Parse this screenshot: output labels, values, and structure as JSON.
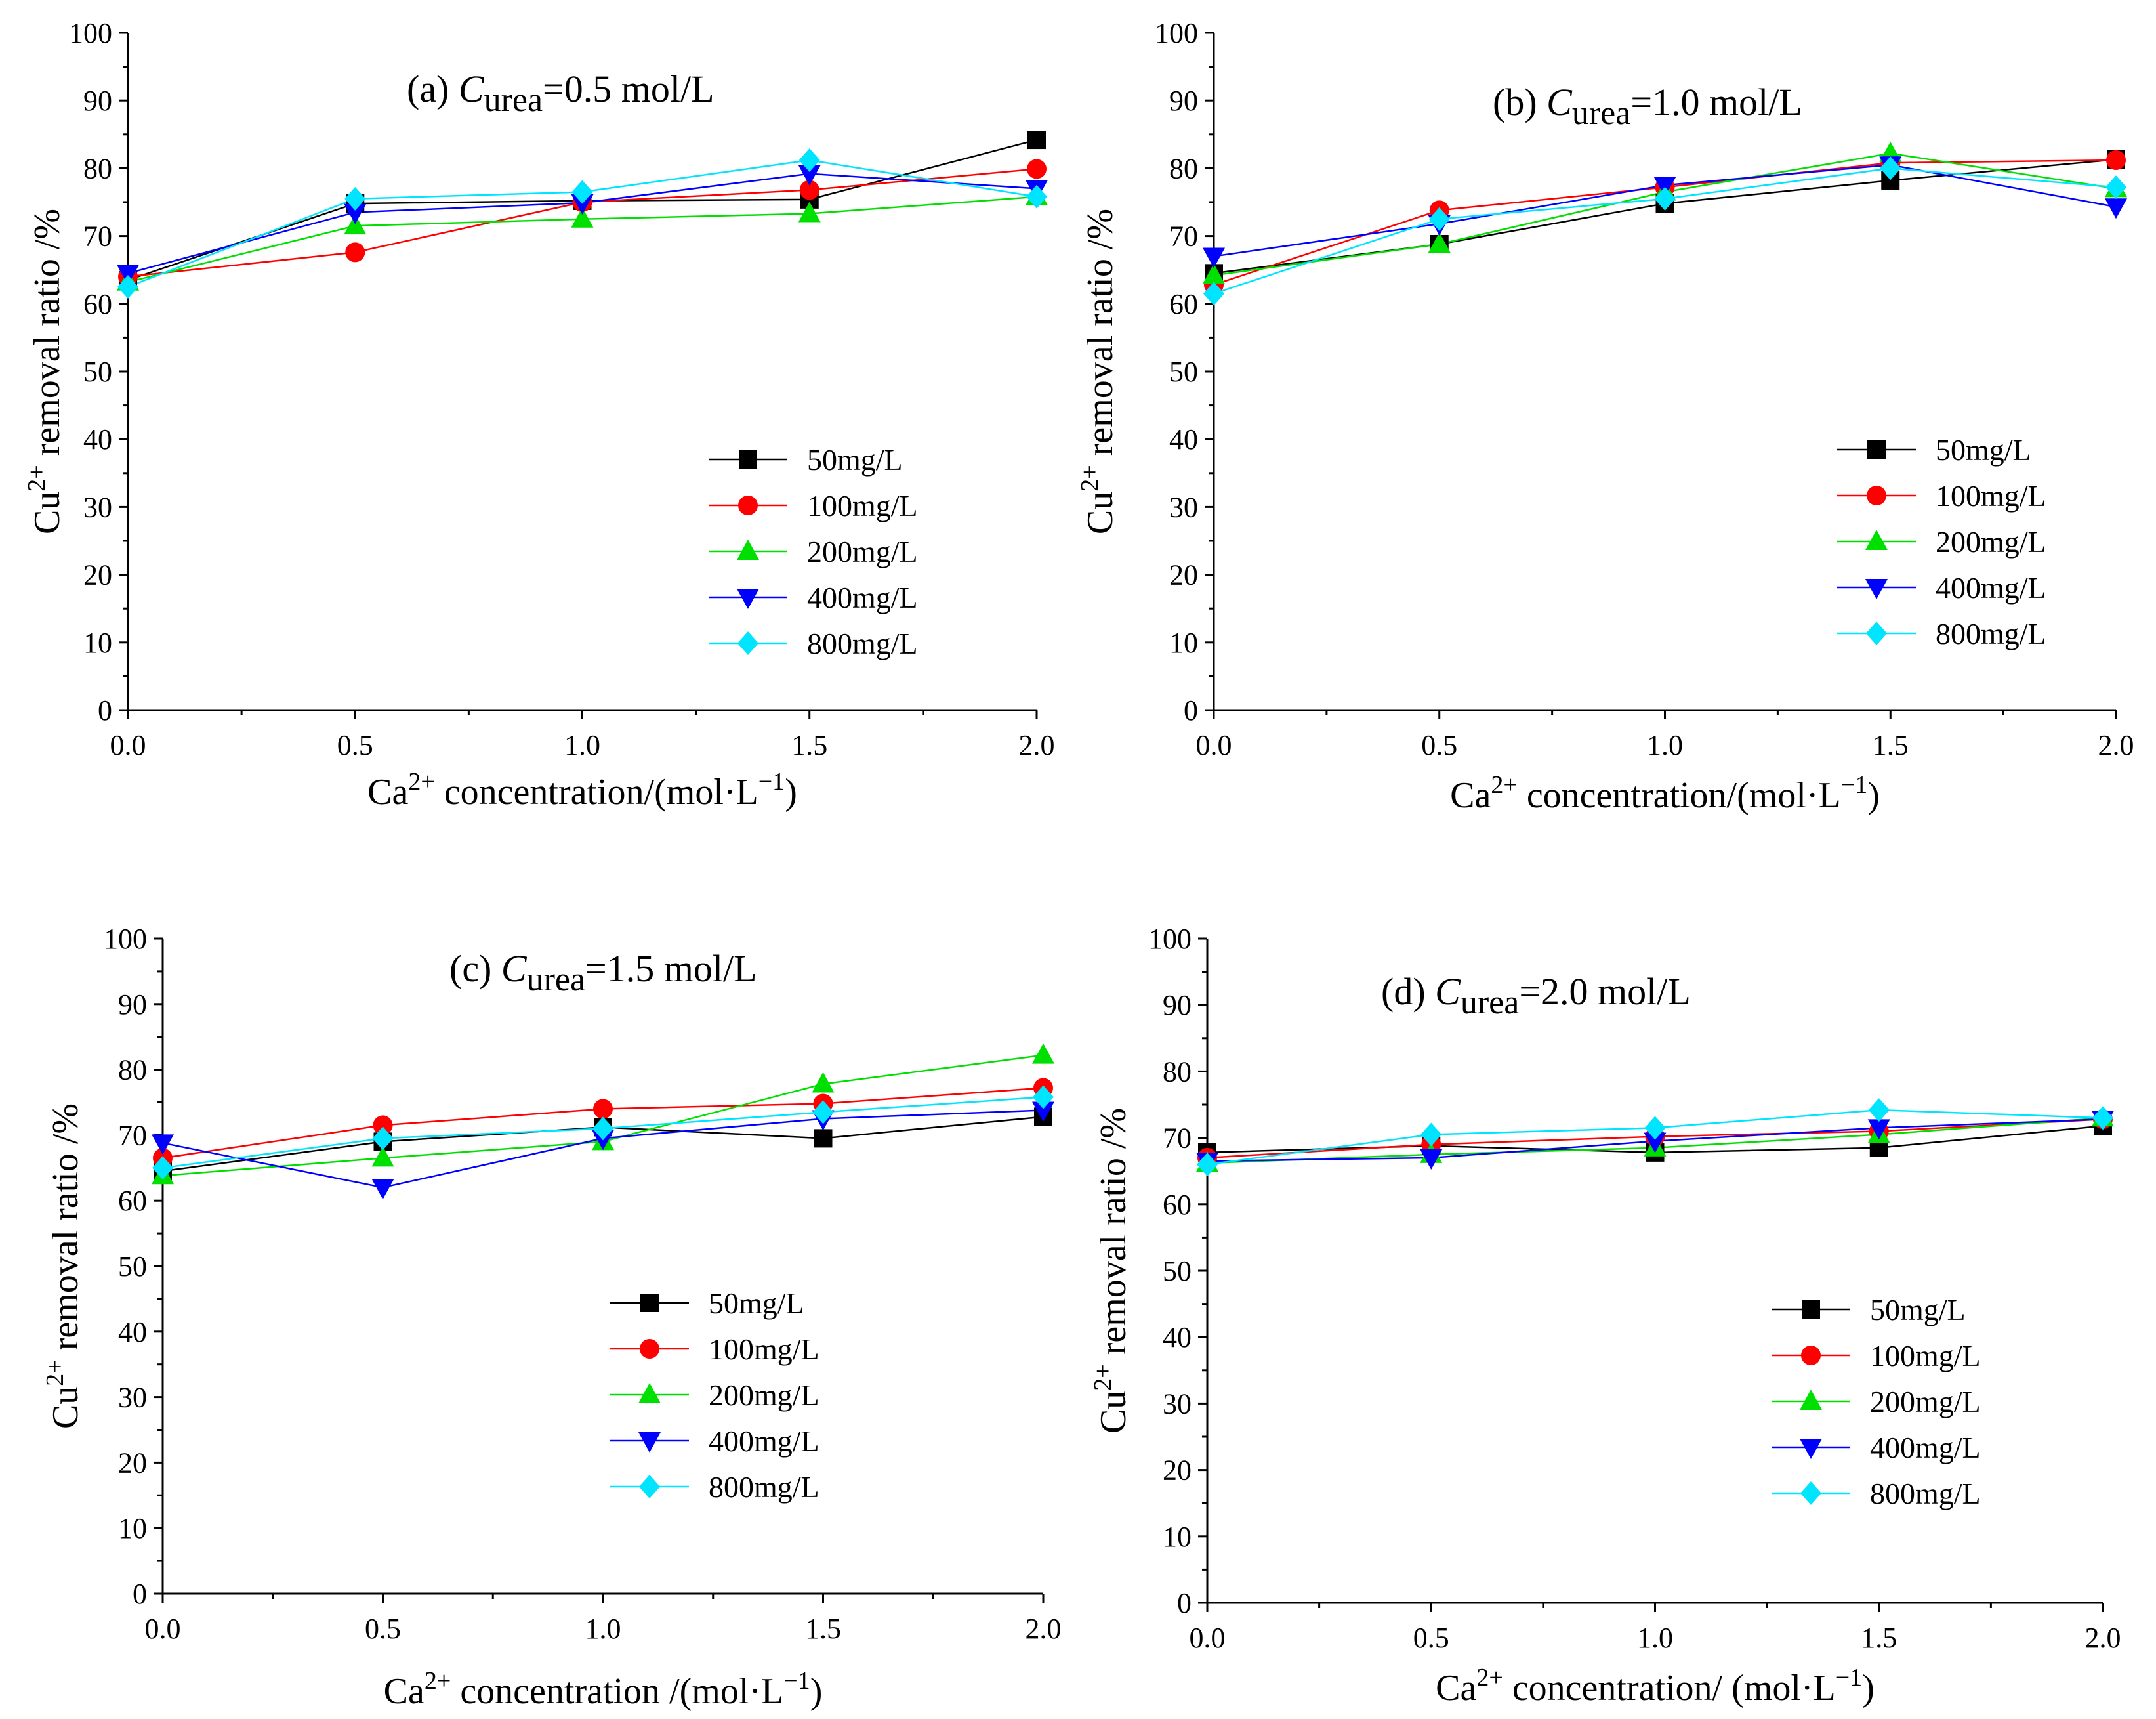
{
  "figure": {
    "description_labels": [
      "(a)",
      "(b)",
      "(c)",
      "(d)"
    ]
  },
  "colors": {
    "50mg/L": "#000000",
    "100mg/L": "#ff0000",
    "200mg/L": "#00e000",
    "400mg/L": "#0000ff",
    "800mg/L": "#00e5ff"
  },
  "chart_data": [
    {
      "type": "line",
      "panel": "a",
      "title_prefix": "(a) ",
      "title_italic": "C",
      "title_sub": "urea",
      "title_suffix": "=0.5 mol/L",
      "ylabel_base": "Cu",
      "ylabel_sup": "2+",
      "ylabel_rest": " removal ratio /%",
      "xlabel_base": "Ca",
      "xlabel_sup": "2+",
      "xlabel_rest": " concentration/(mol·L",
      "xlabel_sup2": "−1",
      "xlabel_end": ")",
      "xlim": [
        0,
        2
      ],
      "ylim": [
        0,
        100
      ],
      "xticks": [
        "0.0",
        "0.5",
        "1.0",
        "1.5",
        "2.0"
      ],
      "yticks": [
        "0",
        "10",
        "20",
        "30",
        "40",
        "50",
        "60",
        "70",
        "80",
        "90",
        "100"
      ],
      "x": [
        0,
        0.5,
        1.0,
        1.5,
        2.0
      ],
      "legend_position": "lower-right",
      "series": [
        {
          "name": "50mg/L",
          "marker": "square",
          "values": [
            63.5,
            74.8,
            75.2,
            75.4,
            84.2
          ]
        },
        {
          "name": "100mg/L",
          "marker": "circle",
          "values": [
            64.0,
            67.6,
            75.0,
            76.8,
            79.9
          ]
        },
        {
          "name": "200mg/L",
          "marker": "triangle-up",
          "values": [
            63.2,
            71.5,
            72.5,
            73.3,
            75.8
          ]
        },
        {
          "name": "400mg/L",
          "marker": "triangle-down",
          "values": [
            64.5,
            73.5,
            74.9,
            79.2,
            77.0
          ]
        },
        {
          "name": "800mg/L",
          "marker": "diamond",
          "values": [
            62.5,
            75.5,
            76.5,
            81.2,
            75.8
          ]
        }
      ]
    },
    {
      "type": "line",
      "panel": "b",
      "title_prefix": "(b) ",
      "title_italic": "C",
      "title_sub": "urea",
      "title_suffix": "=1.0 mol/L",
      "ylabel_base": "Cu",
      "ylabel_sup": "2+",
      "ylabel_rest": " removal ratio /%",
      "xlabel_base": "Ca",
      "xlabel_sup": "2+",
      "xlabel_rest": "  concentration/(mol·L",
      "xlabel_sup2": "−1",
      "xlabel_end": ")",
      "xlim": [
        0,
        2
      ],
      "ylim": [
        0,
        100
      ],
      "xticks": [
        "0.0",
        "0.5",
        "1.0",
        "1.5",
        "2.0"
      ],
      "yticks": [
        "0",
        "10",
        "20",
        "30",
        "40",
        "50",
        "60",
        "70",
        "80",
        "90",
        "100"
      ],
      "x": [
        0,
        0.5,
        1.0,
        1.5,
        2.0
      ],
      "legend_position": "lower-right",
      "series": [
        {
          "name": "50mg/L",
          "marker": "square",
          "values": [
            64.5,
            68.8,
            74.8,
            78.2,
            81.3
          ]
        },
        {
          "name": "100mg/L",
          "marker": "circle",
          "values": [
            62.8,
            73.8,
            77.2,
            80.8,
            81.2
          ]
        },
        {
          "name": "200mg/L",
          "marker": "triangle-up",
          "values": [
            64.2,
            68.8,
            76.5,
            82.2,
            77.0
          ]
        },
        {
          "name": "400mg/L",
          "marker": "triangle-down",
          "values": [
            67.0,
            71.8,
            77.5,
            80.5,
            74.3
          ]
        },
        {
          "name": "800mg/L",
          "marker": "diamond",
          "values": [
            61.5,
            72.5,
            75.5,
            80.0,
            77.2
          ]
        }
      ]
    },
    {
      "type": "line",
      "panel": "c",
      "title_prefix": "(c) ",
      "title_italic": "C",
      "title_sub": "urea",
      "title_suffix": "=1.5 mol/L",
      "ylabel_base": "Cu",
      "ylabel_sup": "2+",
      "ylabel_rest": " removal ratio /%",
      "xlabel_base": "Ca",
      "xlabel_sup": "2+",
      "xlabel_rest": " concentration /(mol·L",
      "xlabel_sup2": "−1",
      "xlabel_end": ")",
      "xlim": [
        0,
        2
      ],
      "ylim": [
        0,
        100
      ],
      "xticks": [
        "0.0",
        "0.5",
        "1.0",
        "1.5",
        "2.0"
      ],
      "yticks": [
        "0",
        "10",
        "20",
        "30",
        "40",
        "50",
        "60",
        "70",
        "80",
        "90",
        "100"
      ],
      "x": [
        0,
        0.5,
        1.0,
        1.5,
        2.0
      ],
      "legend_position": "lower-right",
      "series": [
        {
          "name": "50mg/L",
          "marker": "square",
          "values": [
            64.5,
            69.0,
            71.2,
            69.5,
            72.8
          ]
        },
        {
          "name": "100mg/L",
          "marker": "circle",
          "values": [
            66.5,
            71.5,
            74.0,
            74.8,
            77.2
          ]
        },
        {
          "name": "200mg/L",
          "marker": "triangle-up",
          "values": [
            63.8,
            66.5,
            69.0,
            77.8,
            82.2
          ]
        },
        {
          "name": "400mg/L",
          "marker": "triangle-down",
          "values": [
            68.8,
            62.0,
            69.5,
            72.5,
            73.8
          ]
        },
        {
          "name": "800mg/L",
          "marker": "diamond",
          "values": [
            65.0,
            69.5,
            71.0,
            73.5,
            75.8
          ]
        }
      ]
    },
    {
      "type": "line",
      "panel": "d",
      "title_prefix": "(d) ",
      "title_italic": "C",
      "title_sub": "urea",
      "title_suffix": "=2.0 mol/L",
      "ylabel_base": "Cu",
      "ylabel_sup": "2+",
      "ylabel_rest": " removal ratio /%",
      "xlabel_base": "Ca",
      "xlabel_sup": "2+",
      "xlabel_rest": " concentration/ (mol·L",
      "xlabel_sup2": "−1",
      "xlabel_end": ")",
      "xlim": [
        0,
        2
      ],
      "ylim": [
        0,
        100
      ],
      "xticks": [
        "0.0",
        "0.5",
        "1.0",
        "1.5",
        "2.0"
      ],
      "yticks": [
        "0",
        "10",
        "20",
        "30",
        "40",
        "50",
        "60",
        "70",
        "80",
        "90",
        "100"
      ],
      "x": [
        0,
        0.5,
        1.0,
        1.5,
        2.0
      ],
      "legend_position": "lower-right",
      "series": [
        {
          "name": "50mg/L",
          "marker": "square",
          "values": [
            67.8,
            68.8,
            67.8,
            68.5,
            71.8
          ]
        },
        {
          "name": "100mg/L",
          "marker": "circle",
          "values": [
            67.0,
            69.0,
            70.2,
            71.0,
            72.8
          ]
        },
        {
          "name": "200mg/L",
          "marker": "triangle-up",
          "values": [
            66.2,
            67.5,
            68.5,
            70.5,
            73.0
          ]
        },
        {
          "name": "400mg/L",
          "marker": "triangle-down",
          "values": [
            66.5,
            67.0,
            69.5,
            71.5,
            72.8
          ]
        },
        {
          "name": "800mg/L",
          "marker": "diamond",
          "values": [
            66.0,
            70.5,
            71.5,
            74.2,
            73.0
          ]
        }
      ]
    }
  ]
}
